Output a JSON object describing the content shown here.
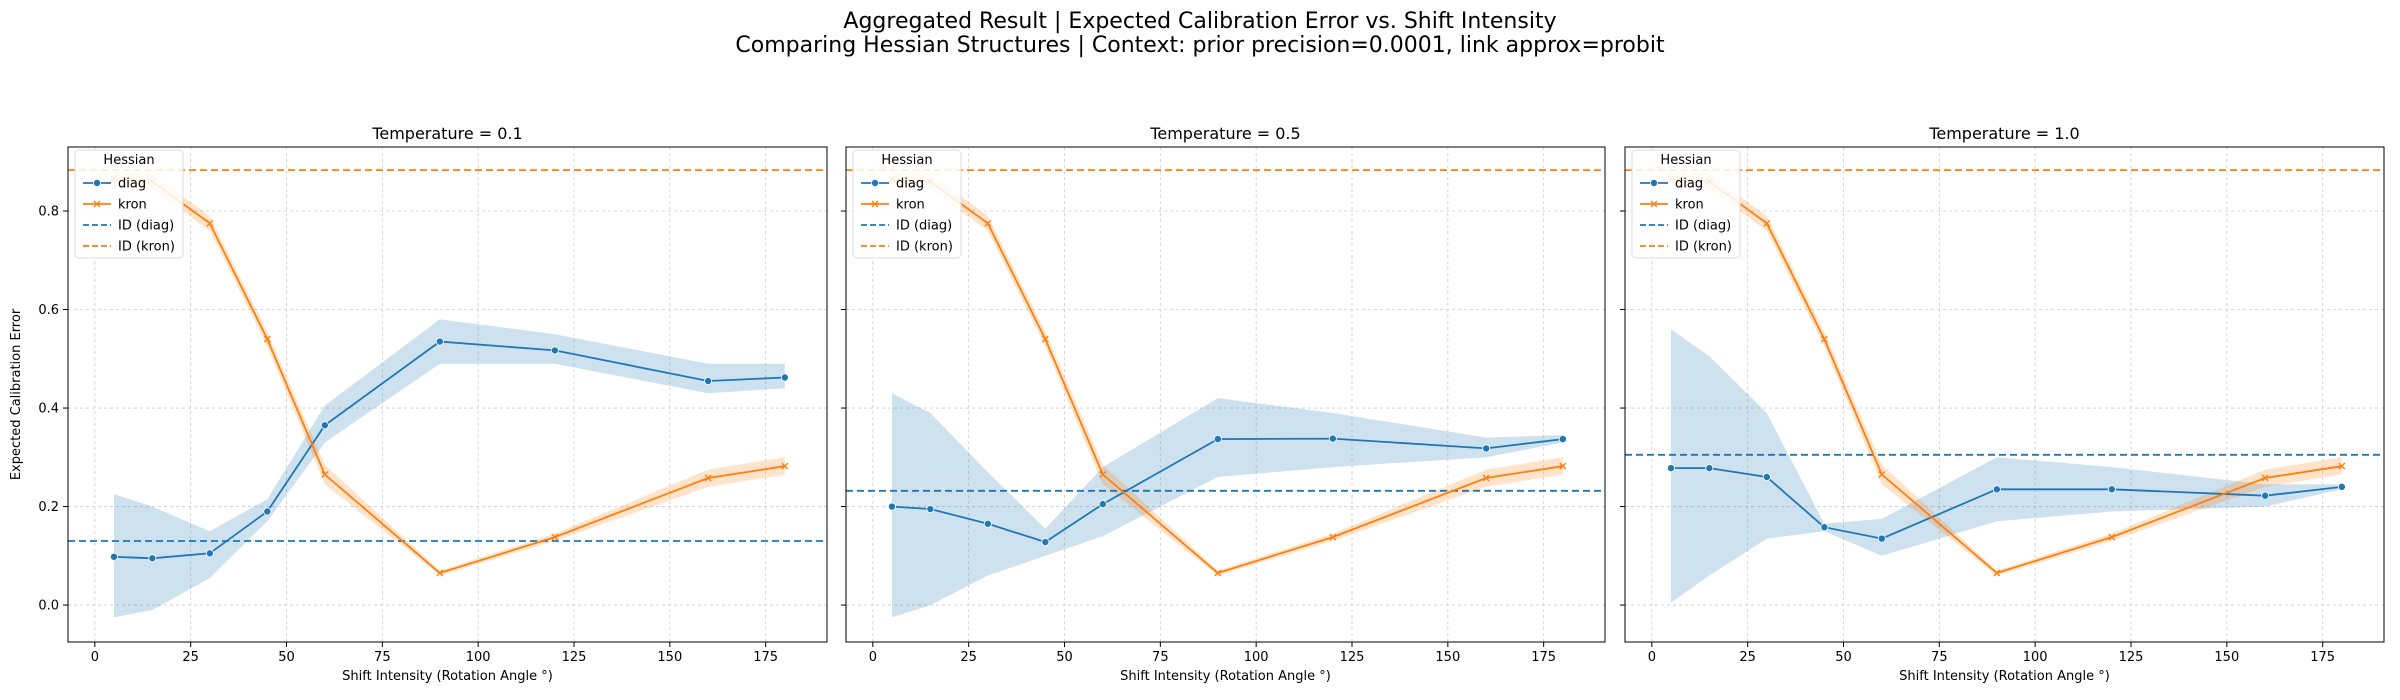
{
  "figure": {
    "title_line1": "Aggregated Result | Expected Calibration Error vs. Shift Intensity",
    "title_line2": "Comparing Hessian Structures | Context: prior precision=0.0001, link approx=probit"
  },
  "colors": {
    "diag": "#1f77b4",
    "kron": "#ff7f0e",
    "grid": "#cccccc"
  },
  "chart_data": [
    {
      "type": "line",
      "title": "Temperature = 0.1",
      "xlabel": "Shift Intensity (Rotation Angle °)",
      "ylabel": "Expected Calibration Error",
      "xlim": [
        -7,
        191
      ],
      "ylim": [
        -0.075,
        0.93
      ],
      "xticks": [
        0,
        25,
        50,
        75,
        100,
        125,
        150,
        175
      ],
      "yticks": [
        0.0,
        0.2,
        0.4,
        0.6,
        0.8
      ],
      "grid": true,
      "legend": {
        "title": "Hessian",
        "position": "top-left",
        "entries": [
          "diag",
          "kron",
          "ID (diag)",
          "ID (kron)"
        ]
      },
      "x": [
        5,
        15,
        30,
        45,
        60,
        90,
        120,
        160,
        180
      ],
      "series": [
        {
          "name": "diag",
          "marker": "circle",
          "values": [
            0.098,
            0.095,
            0.105,
            0.19,
            0.365,
            0.535,
            0.517,
            0.455,
            0.462
          ],
          "ci_low": [
            -0.025,
            -0.01,
            0.055,
            0.17,
            0.33,
            0.49,
            0.49,
            0.43,
            0.44
          ],
          "ci_high": [
            0.225,
            0.2,
            0.15,
            0.215,
            0.405,
            0.58,
            0.55,
            0.49,
            0.49
          ]
        },
        {
          "name": "kron",
          "marker": "x",
          "values": [
            0.865,
            0.86,
            0.775,
            0.54,
            0.265,
            0.065,
            0.138,
            0.258,
            0.282
          ],
          "ci_low": [
            0.85,
            0.845,
            0.76,
            0.525,
            0.245,
            0.06,
            0.13,
            0.24,
            0.265
          ],
          "ci_high": [
            0.88,
            0.875,
            0.79,
            0.555,
            0.285,
            0.07,
            0.145,
            0.275,
            0.3
          ]
        }
      ],
      "hlines": [
        {
          "name": "ID (diag)",
          "value": 0.13
        },
        {
          "name": "ID (kron)",
          "value": 0.883
        }
      ]
    },
    {
      "type": "line",
      "title": "Temperature = 0.5",
      "xlabel": "Shift Intensity (Rotation Angle °)",
      "ylabel": "",
      "xlim": [
        -7,
        191
      ],
      "ylim": [
        -0.075,
        0.93
      ],
      "xticks": [
        0,
        25,
        50,
        75,
        100,
        125,
        150,
        175
      ],
      "yticks": [
        0.0,
        0.2,
        0.4,
        0.6,
        0.8
      ],
      "grid": true,
      "legend": {
        "title": "Hessian",
        "position": "top-left",
        "entries": [
          "diag",
          "kron",
          "ID (diag)",
          "ID (kron)"
        ]
      },
      "x": [
        5,
        15,
        30,
        45,
        60,
        90,
        120,
        160,
        180
      ],
      "series": [
        {
          "name": "diag",
          "marker": "circle",
          "values": [
            0.2,
            0.195,
            0.165,
            0.128,
            0.205,
            0.337,
            0.338,
            0.318,
            0.337
          ],
          "ci_low": [
            -0.025,
            0.0,
            0.06,
            0.1,
            0.14,
            0.26,
            0.28,
            0.3,
            0.33
          ],
          "ci_high": [
            0.43,
            0.39,
            0.27,
            0.155,
            0.28,
            0.42,
            0.39,
            0.34,
            0.345
          ]
        },
        {
          "name": "kron",
          "marker": "x",
          "values": [
            0.865,
            0.86,
            0.775,
            0.54,
            0.265,
            0.065,
            0.138,
            0.258,
            0.282
          ],
          "ci_low": [
            0.85,
            0.845,
            0.76,
            0.525,
            0.245,
            0.06,
            0.13,
            0.24,
            0.265
          ],
          "ci_high": [
            0.88,
            0.875,
            0.79,
            0.555,
            0.285,
            0.07,
            0.145,
            0.275,
            0.3
          ]
        }
      ],
      "hlines": [
        {
          "name": "ID (diag)",
          "value": 0.232
        },
        {
          "name": "ID (kron)",
          "value": 0.883
        }
      ]
    },
    {
      "type": "line",
      "title": "Temperature = 1.0",
      "xlabel": "Shift Intensity (Rotation Angle °)",
      "ylabel": "",
      "xlim": [
        -7,
        191
      ],
      "ylim": [
        -0.075,
        0.93
      ],
      "xticks": [
        0,
        25,
        50,
        75,
        100,
        125,
        150,
        175
      ],
      "yticks": [
        0.0,
        0.2,
        0.4,
        0.6,
        0.8
      ],
      "grid": true,
      "legend": {
        "title": "Hessian",
        "position": "top-left",
        "entries": [
          "diag",
          "kron",
          "ID (diag)",
          "ID (kron)"
        ]
      },
      "x": [
        5,
        15,
        30,
        45,
        60,
        90,
        120,
        160,
        180
      ],
      "series": [
        {
          "name": "diag",
          "marker": "circle",
          "values": [
            0.278,
            0.278,
            0.26,
            0.158,
            0.135,
            0.235,
            0.235,
            0.222,
            0.24
          ],
          "ci_low": [
            0.005,
            0.06,
            0.135,
            0.15,
            0.1,
            0.17,
            0.19,
            0.2,
            0.235
          ],
          "ci_high": [
            0.56,
            0.505,
            0.39,
            0.165,
            0.175,
            0.3,
            0.28,
            0.245,
            0.245
          ]
        },
        {
          "name": "kron",
          "marker": "x",
          "values": [
            0.865,
            0.86,
            0.775,
            0.54,
            0.265,
            0.065,
            0.138,
            0.258,
            0.282
          ],
          "ci_low": [
            0.85,
            0.845,
            0.76,
            0.525,
            0.245,
            0.06,
            0.13,
            0.24,
            0.265
          ],
          "ci_high": [
            0.88,
            0.875,
            0.79,
            0.555,
            0.285,
            0.07,
            0.145,
            0.275,
            0.3
          ]
        }
      ],
      "hlines": [
        {
          "name": "ID (diag)",
          "value": 0.305
        },
        {
          "name": "ID (kron)",
          "value": 0.883
        }
      ]
    }
  ]
}
